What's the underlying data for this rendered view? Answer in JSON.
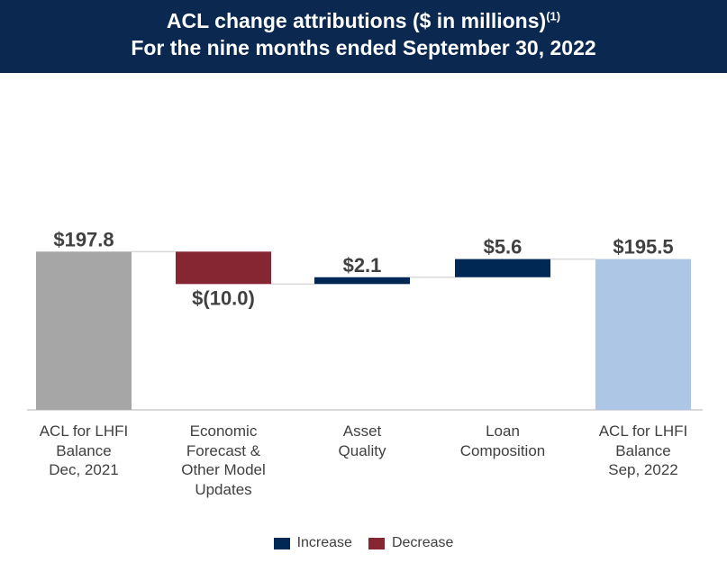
{
  "header": {
    "title": "ACL change attributions ($ in millions)",
    "footnote": "(1)",
    "subtitle": "For the nine months ended September 30, 2022"
  },
  "chart_data": {
    "type": "waterfall",
    "categories": [
      "ACL for LHFI\nBalance\nDec, 2021",
      "Economic\nForecast &\nOther Model\nUpdates",
      "Asset\nQuality",
      "Loan\nComposition",
      "ACL for LHFI\nBalance\nSep, 2022"
    ],
    "values": [
      197.8,
      -10.0,
      2.1,
      5.6,
      195.5
    ],
    "kinds": [
      "total",
      "delta",
      "delta",
      "delta",
      "total"
    ],
    "data_labels": [
      "$197.8",
      "$(10.0)",
      "$2.1",
      "$5.6",
      "$195.5"
    ],
    "ylim": [
      149,
      209
    ],
    "grid": false,
    "legend": {
      "position": "bottom",
      "entries": [
        {
          "name": "Increase",
          "color": "#002855"
        },
        {
          "name": "Decrease",
          "color": "#862633"
        }
      ]
    },
    "colors": {
      "start_total": "#a6a6a6",
      "end_total": "#adc6e5",
      "increase": "#002855",
      "decrease": "#862633"
    }
  }
}
